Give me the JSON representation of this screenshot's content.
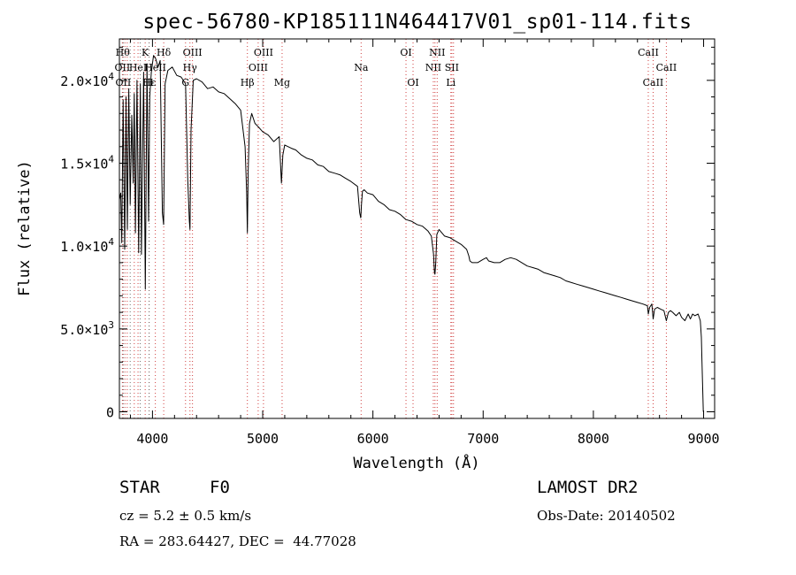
{
  "chart_data": {
    "type": "line",
    "title": "spec-56780-KP185111N464417V01_sp01-114.fits",
    "xlabel": "Wavelength (Å)",
    "ylabel": "Flux (relative)",
    "xlim": [
      3700,
      9100
    ],
    "ylim": [
      -400,
      22500
    ],
    "x_ticks": [
      {
        "value": 4000,
        "label": "4000"
      },
      {
        "value": 5000,
        "label": "5000"
      },
      {
        "value": 6000,
        "label": "6000"
      },
      {
        "value": 7000,
        "label": "7000"
      },
      {
        "value": 8000,
        "label": "8000"
      },
      {
        "value": 9000,
        "label": "9000"
      }
    ],
    "y_ticks": [
      {
        "value": 0,
        "mantissa": "0",
        "exponent": ""
      },
      {
        "value": 5000,
        "mantissa": "5.0×10",
        "exponent": "3"
      },
      {
        "value": 10000,
        "mantissa": "1.0×10",
        "exponent": "4"
      },
      {
        "value": 15000,
        "mantissa": "1.5×10",
        "exponent": "4"
      },
      {
        "value": 20000,
        "mantissa": "2.0×10",
        "exponent": "4"
      }
    ],
    "grid": false,
    "series": [
      {
        "name": "flux",
        "x": [
          3700,
          3712,
          3722,
          3734,
          3748,
          3760,
          3772,
          3785,
          3798,
          3812,
          3825,
          3835,
          3845,
          3860,
          3875,
          3890,
          3900,
          3920,
          3935,
          3950,
          3965,
          3975,
          3990,
          4010,
          4030,
          4050,
          4070,
          4090,
          4101,
          4115,
          4140,
          4180,
          4220,
          4260,
          4300,
          4320,
          4335,
          4340,
          4350,
          4370,
          4400,
          4450,
          4500,
          4550,
          4600,
          4650,
          4700,
          4750,
          4800,
          4840,
          4855,
          4861,
          4868,
          4880,
          4900,
          4930,
          4960,
          5000,
          5050,
          5100,
          5150,
          5170,
          5183,
          5200,
          5260,
          5300,
          5350,
          5400,
          5450,
          5500,
          5550,
          5600,
          5650,
          5700,
          5750,
          5800,
          5860,
          5880,
          5890,
          5896,
          5905,
          5920,
          5950,
          6000,
          6050,
          6100,
          6150,
          6200,
          6250,
          6300,
          6350,
          6400,
          6450,
          6500,
          6530,
          6550,
          6558,
          6563,
          6570,
          6580,
          6600,
          6650,
          6700,
          6750,
          6800,
          6850,
          6870,
          6880,
          6900,
          6950,
          7000,
          7030,
          7050,
          7100,
          7150,
          7200,
          7250,
          7300,
          7350,
          7400,
          7450,
          7500,
          7550,
          7600,
          7650,
          7700,
          7750,
          7800,
          7850,
          7900,
          7950,
          8000,
          8050,
          8100,
          8150,
          8200,
          8250,
          8300,
          8350,
          8400,
          8450,
          8490,
          8498,
          8510,
          8530,
          8542,
          8555,
          8580,
          8610,
          8640,
          8662,
          8680,
          8700,
          8720,
          8750,
          8780,
          8800,
          8830,
          8860,
          8880,
          8900,
          8920,
          8950,
          8970,
          8980,
          8985,
          8990,
          8994,
          8997
        ],
        "y": [
          12800,
          13200,
          10200,
          18800,
          9800,
          19000,
          11000,
          19500,
          12500,
          17900,
          13800,
          19200,
          10800,
          20000,
          9600,
          19800,
          9500,
          20500,
          7400,
          21000,
          11500,
          19000,
          20500,
          21500,
          21300,
          20800,
          21200,
          12000,
          11300,
          19800,
          20600,
          20800,
          20300,
          20200,
          19800,
          14000,
          11500,
          11000,
          17000,
          20000,
          20100,
          19900,
          19500,
          19600,
          19300,
          19200,
          18900,
          18600,
          18200,
          16000,
          13200,
          10800,
          14500,
          17400,
          18000,
          17400,
          17200,
          16900,
          16700,
          16300,
          16600,
          13800,
          15500,
          16100,
          15900,
          15800,
          15500,
          15300,
          15200,
          14900,
          14800,
          14500,
          14400,
          14300,
          14100,
          13900,
          13600,
          12000,
          11700,
          12500,
          13300,
          13400,
          13200,
          13100,
          12700,
          12500,
          12200,
          12100,
          11900,
          11600,
          11500,
          11300,
          11200,
          10900,
          10600,
          9500,
          8400,
          8300,
          9000,
          10700,
          11000,
          10600,
          10500,
          10300,
          10100,
          9800,
          9400,
          9100,
          9000,
          9000,
          9200,
          9300,
          9100,
          9000,
          9000,
          9200,
          9300,
          9200,
          9000,
          8800,
          8700,
          8600,
          8400,
          8300,
          8200,
          8100,
          7900,
          7800,
          7700,
          7600,
          7500,
          7400,
          7300,
          7200,
          7100,
          7000,
          6900,
          6800,
          6700,
          6600,
          6500,
          6400,
          5900,
          6300,
          6500,
          5600,
          6200,
          6300,
          6200,
          6100,
          5500,
          6000,
          6100,
          6000,
          5800,
          6000,
          5700,
          5500,
          5900,
          5600,
          5900,
          5800,
          5900,
          5500,
          4500,
          3000,
          1800,
          800,
          0
        ]
      }
    ],
    "line_markers": [
      {
        "x": 3730,
        "label": "Hθ",
        "row": 1
      },
      {
        "x": 3727,
        "label": "OII",
        "row": 2
      },
      {
        "x": 3735,
        "label": "OII",
        "row": 3
      },
      {
        "x": 3750,
        "label": "",
        "row": 0
      },
      {
        "x": 3771,
        "label": "",
        "row": 0
      },
      {
        "x": 3798,
        "label": "",
        "row": 0
      },
      {
        "x": 3835,
        "label": "",
        "row": 0
      },
      {
        "x": 3869,
        "label": "HeI",
        "row": 2
      },
      {
        "x": 3889,
        "label": "",
        "row": 0
      },
      {
        "x": 3934,
        "label": "K",
        "row": 1
      },
      {
        "x": 3969,
        "label": "H",
        "row": 3
      },
      {
        "x": 3970,
        "label": "Hε",
        "row": 3
      },
      {
        "x": 4026,
        "label": "HeII",
        "row": 2
      },
      {
        "x": 4102,
        "label": "Hδ",
        "row": 1
      },
      {
        "x": 4300,
        "label": "G",
        "row": 3
      },
      {
        "x": 4340,
        "label": "Hγ",
        "row": 2
      },
      {
        "x": 4363,
        "label": "OIII",
        "row": 1
      },
      {
        "x": 4861,
        "label": "Hβ",
        "row": 3
      },
      {
        "x": 4959,
        "label": "OIII",
        "row": 2
      },
      {
        "x": 5007,
        "label": "OIII",
        "row": 1
      },
      {
        "x": 5176,
        "label": "Mg",
        "row": 3
      },
      {
        "x": 5893,
        "label": "Na",
        "row": 2
      },
      {
        "x": 6300,
        "label": "OI",
        "row": 1
      },
      {
        "x": 6364,
        "label": "OI",
        "row": 3
      },
      {
        "x": 6548,
        "label": "NII",
        "row": 2
      },
      {
        "x": 6563,
        "label": "",
        "row": 0
      },
      {
        "x": 6583,
        "label": "NII",
        "row": 1
      },
      {
        "x": 6707,
        "label": "Li",
        "row": 3
      },
      {
        "x": 6716,
        "label": "SII",
        "row": 2
      },
      {
        "x": 6731,
        "label": "",
        "row": 0
      },
      {
        "x": 8498,
        "label": "CaII",
        "row": 1
      },
      {
        "x": 8542,
        "label": "CaII",
        "row": 3
      },
      {
        "x": 8662,
        "label": "CaII",
        "row": 2
      }
    ]
  },
  "info": {
    "object_class": "STAR",
    "subclass": "F0",
    "redshift_text": "cz = 5.2 ± 0.5 km/s",
    "coords_text": "RA = 283.64427, DEC =  44.77028",
    "release": "LAMOST DR2",
    "obs_date_text": "Obs-Date: 20140502"
  },
  "colors": {
    "axis": "#000000",
    "spectrum": "#000000",
    "marker": "#d04040",
    "marker_gray": "#707070"
  }
}
